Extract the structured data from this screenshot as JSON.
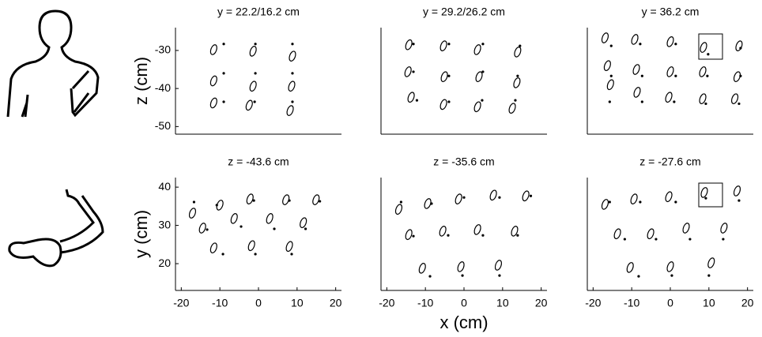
{
  "chart_data": [
    {
      "type": "scatter",
      "title": "y = 22.2/16.2 cm",
      "ylabel": "z (cm)",
      "x": [
        -9,
        -0.8,
        8.8,
        -9,
        -0.8,
        8.8,
        -9,
        -1,
        8.8
      ],
      "y": [
        -28.3,
        -28.3,
        -28.3,
        -36,
        -36,
        -36,
        -43.5,
        -43.5,
        -43.5
      ],
      "ellipse_x": [
        -11.6,
        -1.4,
        8.8,
        -11.6,
        -1.4,
        8.6,
        -11.6,
        -2.4,
        8.2
      ],
      "ellipse_y": [
        -29.8,
        -30.2,
        -31.5,
        -38,
        -39.4,
        -39.4,
        -43.8,
        -44.4,
        -45.8
      ],
      "xlim": [
        -21.5,
        21.5
      ],
      "ylim": [
        -52,
        -24
      ],
      "yticks": [
        -50,
        -40,
        -30
      ]
    },
    {
      "type": "scatter",
      "title": "y = 29.2/26.2 cm",
      "x": [
        -13.1,
        -3.9,
        4.9,
        14.5,
        -13.1,
        -3.9,
        4.9,
        13.9,
        -12.2,
        -3.9,
        4.7,
        13.3
      ],
      "y": [
        -28.3,
        -28.3,
        -28.3,
        -28.8,
        -35.6,
        -36.7,
        -35.6,
        -36.7,
        -43.1,
        -43.5,
        -43.1,
        -43.1
      ],
      "ellipse_x": [
        -14.3,
        -5.3,
        3.5,
        13.9,
        -14.5,
        -5.1,
        3.9,
        13.7,
        -13.7,
        -5.3,
        3.5,
        12.5
      ],
      "ellipse_y": [
        -28.5,
        -28.8,
        -29.8,
        -30.4,
        -35.6,
        -36.9,
        -36.9,
        -38.5,
        -42.3,
        -44.2,
        -44.8,
        -45.2
      ],
      "xlim": [
        -21.5,
        21.5
      ],
      "ylim": [
        -52,
        -24
      ]
    },
    {
      "type": "scatter",
      "title": "y = 36.2 cm",
      "x": [
        -15.3,
        -7.8,
        1.4,
        9.8,
        18.2,
        -15.3,
        -7.3,
        1.4,
        9.6,
        18.2,
        -15.7,
        -7.3,
        1,
        9.2,
        17.8
      ],
      "y": [
        -28.8,
        -28.3,
        -28.3,
        -31,
        -29.4,
        -36.7,
        -36.7,
        -36.7,
        -36.7,
        -36.7,
        -43.5,
        -43.5,
        -43.5,
        -44,
        -44
      ],
      "ellipse_x": [
        -16.9,
        -9.2,
        0,
        8.6,
        17.8,
        -16.3,
        -8.8,
        0,
        8.4,
        17.3,
        -15.5,
        -8.6,
        -0.4,
        8.4,
        16.7
      ],
      "ellipse_y": [
        -26.7,
        -27.1,
        -27.7,
        -29.2,
        -28.8,
        -34,
        -35,
        -35.6,
        -35.6,
        -36.9,
        -39,
        -41,
        -42.3,
        -42.7,
        -42.7
      ],
      "xlim": [
        -21.5,
        21.5
      ],
      "ylim": [
        -52,
        -24
      ]
    },
    {
      "type": "scatter",
      "title": "z = -43.6 cm",
      "ylabel": "y (cm)",
      "x": [
        -16.7,
        -10.8,
        -1.2,
        8,
        15.9,
        -13.3,
        -4.5,
        4.1,
        12.2,
        -9.2,
        -0.8,
        8.6
      ],
      "y": [
        36.1,
        35.3,
        36.5,
        36.5,
        36.3,
        28.9,
        29.7,
        29.1,
        29.1,
        22.5,
        22.5,
        22.5
      ],
      "ellipse_x": [
        -17.1,
        -10,
        -2.2,
        7.1,
        14.9,
        -14.5,
        -6.3,
        2.9,
        11.6,
        -11.6,
        -1.8,
        8
      ],
      "ellipse_y": [
        33.2,
        35.3,
        36.9,
        36.7,
        36.7,
        29.3,
        31.8,
        31.8,
        30.7,
        24.1,
        24.7,
        24.5
      ],
      "xlim": [
        -21.5,
        21.5
      ],
      "ylim": [
        13,
        42.5
      ],
      "xticks": [
        -20,
        -10,
        0,
        10,
        20
      ],
      "yticks": [
        20,
        30,
        40
      ]
    },
    {
      "type": "scatter",
      "title": "z = -35.6 cm",
      "xlabel": "x (cm)",
      "x": [
        -16.3,
        -8.4,
        0,
        9.2,
        17.3,
        -13.1,
        -4.1,
        4.9,
        13.9,
        -8.8,
        -0.4,
        9.2
      ],
      "y": [
        36.1,
        35.7,
        37.3,
        37.3,
        37.7,
        27.2,
        27.4,
        27.4,
        27.4,
        16.7,
        16.9,
        16.9
      ],
      "ellipse_x": [
        -16.9,
        -9.4,
        -1.4,
        7.6,
        16,
        -14.3,
        -5.5,
        3.5,
        13.1,
        -10.8,
        -0.8,
        8.9
      ],
      "ellipse_y": [
        34.2,
        35.7,
        36.9,
        37.9,
        37.7,
        27.6,
        28.5,
        28.9,
        28.5,
        18.8,
        19.2,
        19.6
      ],
      "xlim": [
        -21.5,
        21.5
      ],
      "ylim": [
        13,
        42.5
      ],
      "xticks": [
        -20,
        -10,
        0,
        10,
        20
      ]
    },
    {
      "type": "scatter",
      "title": "z = -27.6 cm",
      "x": [
        -15.7,
        -7.8,
        1.4,
        9.2,
        17.8,
        -11.8,
        -3.7,
        5.1,
        13.7,
        -8.2,
        0.4,
        10
      ],
      "y": [
        36.1,
        36.1,
        36.1,
        37.1,
        36.5,
        26.4,
        26.4,
        26.4,
        26.4,
        16.7,
        16.9,
        16.9
      ],
      "ellipse_x": [
        -16.9,
        -9.4,
        -0.4,
        8.8,
        17.3,
        -13.7,
        -5.1,
        4.1,
        13.9,
        -10.4,
        0,
        10.6
      ],
      "ellipse_y": [
        35.5,
        36.9,
        37.5,
        38.6,
        39,
        27.8,
        27.8,
        29.3,
        29.3,
        19,
        19.2,
        20.2
      ],
      "xlim": [
        -21.5,
        21.5
      ],
      "ylim": [
        13,
        42.5
      ],
      "xticks": [
        -20,
        -10,
        0,
        10,
        20
      ]
    }
  ]
}
